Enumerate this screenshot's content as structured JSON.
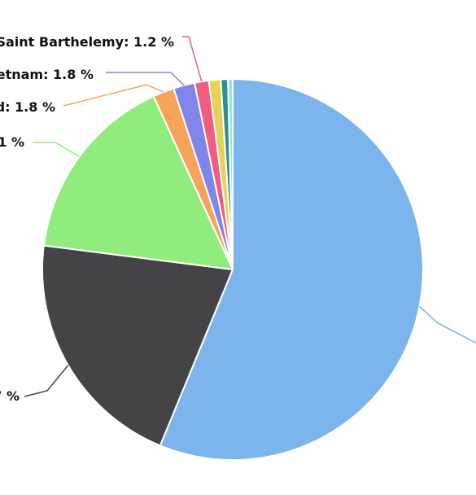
{
  "chart_data": {
    "type": "pie",
    "start_angle_deg": 0,
    "direction": "clockwise",
    "slices": [
      {
        "value": 56.0,
        "color": "#7cb5ec"
      },
      {
        "value": 20.7,
        "color": "#434348",
        "label": "7 %"
      },
      {
        "value": 16.1,
        "color": "#90ed7d",
        "label": "1 %"
      },
      {
        "value": 1.8,
        "color": "#f7a35c",
        "label": "d: 1.8 %"
      },
      {
        "value": 1.8,
        "color": "#8085e9",
        "label": "etnam: 1.8 %"
      },
      {
        "value": 1.2,
        "color": "#f15c80",
        "label": "Saint Barthelemy: 1.2 %"
      },
      {
        "value": 1.0,
        "color": "#e4d354"
      },
      {
        "value": 0.6,
        "color": "#2b908f"
      },
      {
        "value": 0.4,
        "color": "#91e8e1"
      }
    ]
  }
}
